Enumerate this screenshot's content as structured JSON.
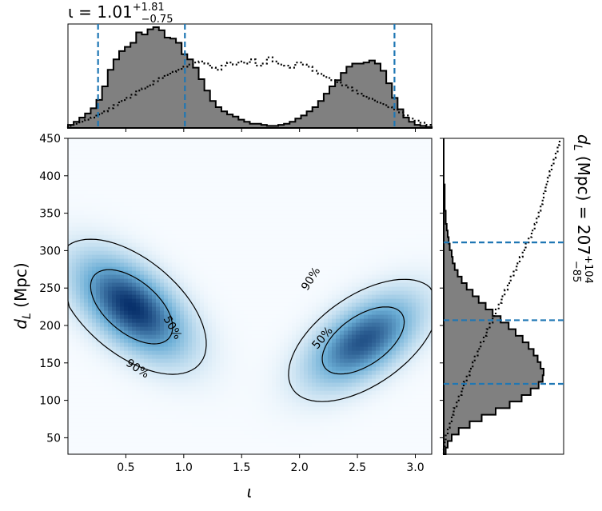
{
  "chart_data": {
    "type": "heatmap",
    "subtype": "corner-plot",
    "x_param": {
      "symbol": "ι",
      "axis_label": "ι",
      "range": [
        0.0,
        3.1416
      ],
      "ticks": [
        "0.5",
        "1.0",
        "1.5",
        "2.0",
        "2.5",
        "3.0"
      ],
      "tick_values": [
        0.5,
        1.0,
        1.5,
        2.0,
        2.5,
        3.0
      ]
    },
    "y_param": {
      "symbol": "d_L",
      "axis_label_main": "d",
      "axis_label_sub": "L",
      "axis_label_unit": " (Mpc)",
      "range": [
        28,
        450
      ],
      "ticks": [
        "50",
        "100",
        "150",
        "200",
        "250",
        "300",
        "350",
        "400",
        "450"
      ],
      "tick_values": [
        50,
        100,
        150,
        200,
        250,
        300,
        350,
        400,
        450
      ]
    },
    "top_title": {
      "prefix": "ι = ",
      "median": "1.01",
      "plus": "+1.81",
      "minus": "−0.75"
    },
    "right_title": {
      "prefix_main": "d",
      "prefix_sub": "L",
      "prefix_rest": " (Mpc) = ",
      "median": "207",
      "plus": "+104",
      "minus": "−85"
    },
    "iota_quantile_lines": [
      0.26,
      1.01,
      2.82
    ],
    "dl_quantile_lines": [
      122,
      207,
      311
    ],
    "iota_hist": {
      "bin_width": 0.06545,
      "posterior": [
        0.03,
        0.06,
        0.1,
        0.14,
        0.19,
        0.27,
        0.4,
        0.56,
        0.66,
        0.74,
        0.78,
        0.82,
        0.92,
        0.9,
        0.95,
        0.97,
        0.94,
        0.87,
        0.86,
        0.82,
        0.71,
        0.66,
        0.58,
        0.47,
        0.36,
        0.26,
        0.2,
        0.16,
        0.13,
        0.11,
        0.08,
        0.06,
        0.04,
        0.04,
        0.03,
        0.02,
        0.02,
        0.03,
        0.04,
        0.06,
        0.09,
        0.12,
        0.16,
        0.2,
        0.26,
        0.33,
        0.4,
        0.46,
        0.53,
        0.59,
        0.62,
        0.62,
        0.63,
        0.65,
        0.62,
        0.55,
        0.43,
        0.29,
        0.18,
        0.1,
        0.06,
        0.03,
        0.02,
        0.01
      ],
      "prior": [
        0.02,
        0.04,
        0.06,
        0.08,
        0.1,
        0.13,
        0.16,
        0.19,
        0.22,
        0.26,
        0.29,
        0.32,
        0.36,
        0.38,
        0.41,
        0.45,
        0.48,
        0.51,
        0.54,
        0.56,
        0.59,
        0.61,
        0.63,
        0.64,
        0.62,
        0.58,
        0.56,
        0.6,
        0.63,
        0.61,
        0.64,
        0.62,
        0.66,
        0.6,
        0.62,
        0.68,
        0.64,
        0.61,
        0.6,
        0.58,
        0.63,
        0.61,
        0.59,
        0.55,
        0.52,
        0.49,
        0.46,
        0.44,
        0.41,
        0.39,
        0.36,
        0.33,
        0.3,
        0.28,
        0.25,
        0.23,
        0.2,
        0.18,
        0.15,
        0.12,
        0.09,
        0.07,
        0.05,
        0.03
      ]
    },
    "dl_hist": {
      "bin_width": 8.77,
      "posterior": [
        0.02,
        0.04,
        0.08,
        0.15,
        0.26,
        0.38,
        0.52,
        0.66,
        0.78,
        0.87,
        0.95,
        0.99,
        1.0,
        0.97,
        0.94,
        0.9,
        0.85,
        0.79,
        0.72,
        0.65,
        0.57,
        0.49,
        0.42,
        0.35,
        0.29,
        0.23,
        0.18,
        0.14,
        0.11,
        0.09,
        0.08,
        0.06,
        0.05,
        0.04,
        0.03,
        0.02,
        0.02,
        0.01,
        0.01,
        0.01,
        0.01,
        0.0,
        0.0,
        0.0,
        0.0,
        0.0,
        0.0,
        0.0
      ],
      "prior": [
        0.0,
        0.01,
        0.02,
        0.04,
        0.06,
        0.08,
        0.1,
        0.13,
        0.15,
        0.18,
        0.2,
        0.23,
        0.26,
        0.29,
        0.31,
        0.34,
        0.37,
        0.4,
        0.43,
        0.46,
        0.49,
        0.52,
        0.55,
        0.58,
        0.61,
        0.64,
        0.67,
        0.7,
        0.73,
        0.76,
        0.79,
        0.82,
        0.85,
        0.88,
        0.91,
        0.93,
        0.95,
        0.97,
        0.99,
        1.0,
        1.02,
        1.04,
        1.06,
        1.08,
        1.1,
        1.12,
        1.14,
        1.16
      ]
    },
    "density_modes": [
      {
        "x": 0.55,
        "y": 225,
        "sx": 0.3,
        "sy": 42,
        "rho": -0.55,
        "weight": 1.0
      },
      {
        "x": 2.55,
        "y": 180,
        "sx": 0.3,
        "sy": 38,
        "rho": 0.55,
        "weight": 0.85
      }
    ],
    "contour_labels": [
      {
        "text": "50%",
        "x": 0.9,
        "y": 197,
        "rotate": 60
      },
      {
        "text": "90%",
        "x": 0.6,
        "y": 142,
        "rotate": 33
      },
      {
        "text": "90%",
        "x": 2.1,
        "y": 262,
        "rotate": -58
      },
      {
        "text": "50%",
        "x": 2.2,
        "y": 183,
        "rotate": -50
      }
    ],
    "colors": {
      "posterior_fill": "#808080",
      "quantile_line": "#1f77b4",
      "heat_max": "#08306b",
      "heat_min": "#f7fbff"
    }
  }
}
